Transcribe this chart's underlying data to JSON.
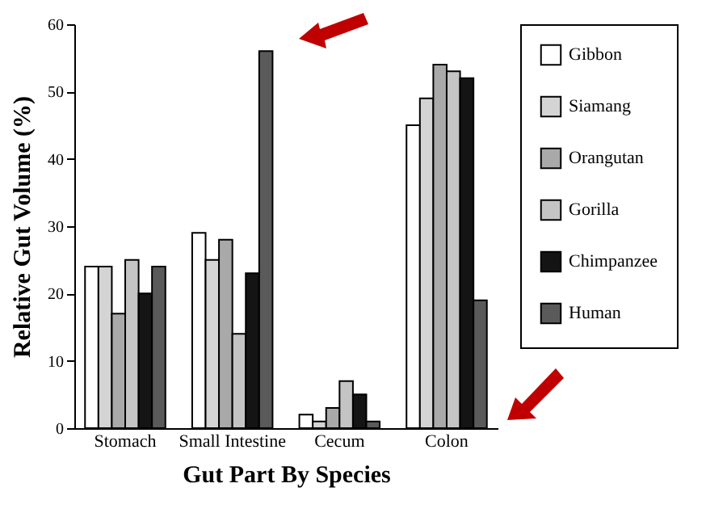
{
  "chart_data": {
    "type": "bar",
    "xlabel": "Gut Part By Species",
    "ylabel": "Relative Gut Volume (%)",
    "categories": [
      "Stomach",
      "Small Intestine",
      "Cecum",
      "Colon"
    ],
    "series": [
      {
        "name": "Gibbon",
        "color": "#ffffff",
        "values": [
          24,
          29,
          2,
          45
        ]
      },
      {
        "name": "Siamang",
        "color": "#d4d4d4",
        "values": [
          24,
          25,
          1,
          49
        ]
      },
      {
        "name": "Orangutan",
        "color": "#a9a9a9",
        "values": [
          17,
          28,
          3,
          54
        ]
      },
      {
        "name": "Gorilla",
        "color": "#c4c4c4",
        "values": [
          25,
          14,
          7,
          53
        ]
      },
      {
        "name": "Chimpanzee",
        "color": "#141414",
        "values": [
          20,
          23,
          5,
          52
        ]
      },
      {
        "name": "Human",
        "color": "#5a5a5a",
        "values": [
          24,
          56,
          1,
          19
        ]
      }
    ],
    "ylim": [
      0,
      60
    ],
    "yticks": [
      0,
      10,
      20,
      30,
      40,
      50,
      60
    ],
    "grid": false,
    "legend": "right"
  }
}
